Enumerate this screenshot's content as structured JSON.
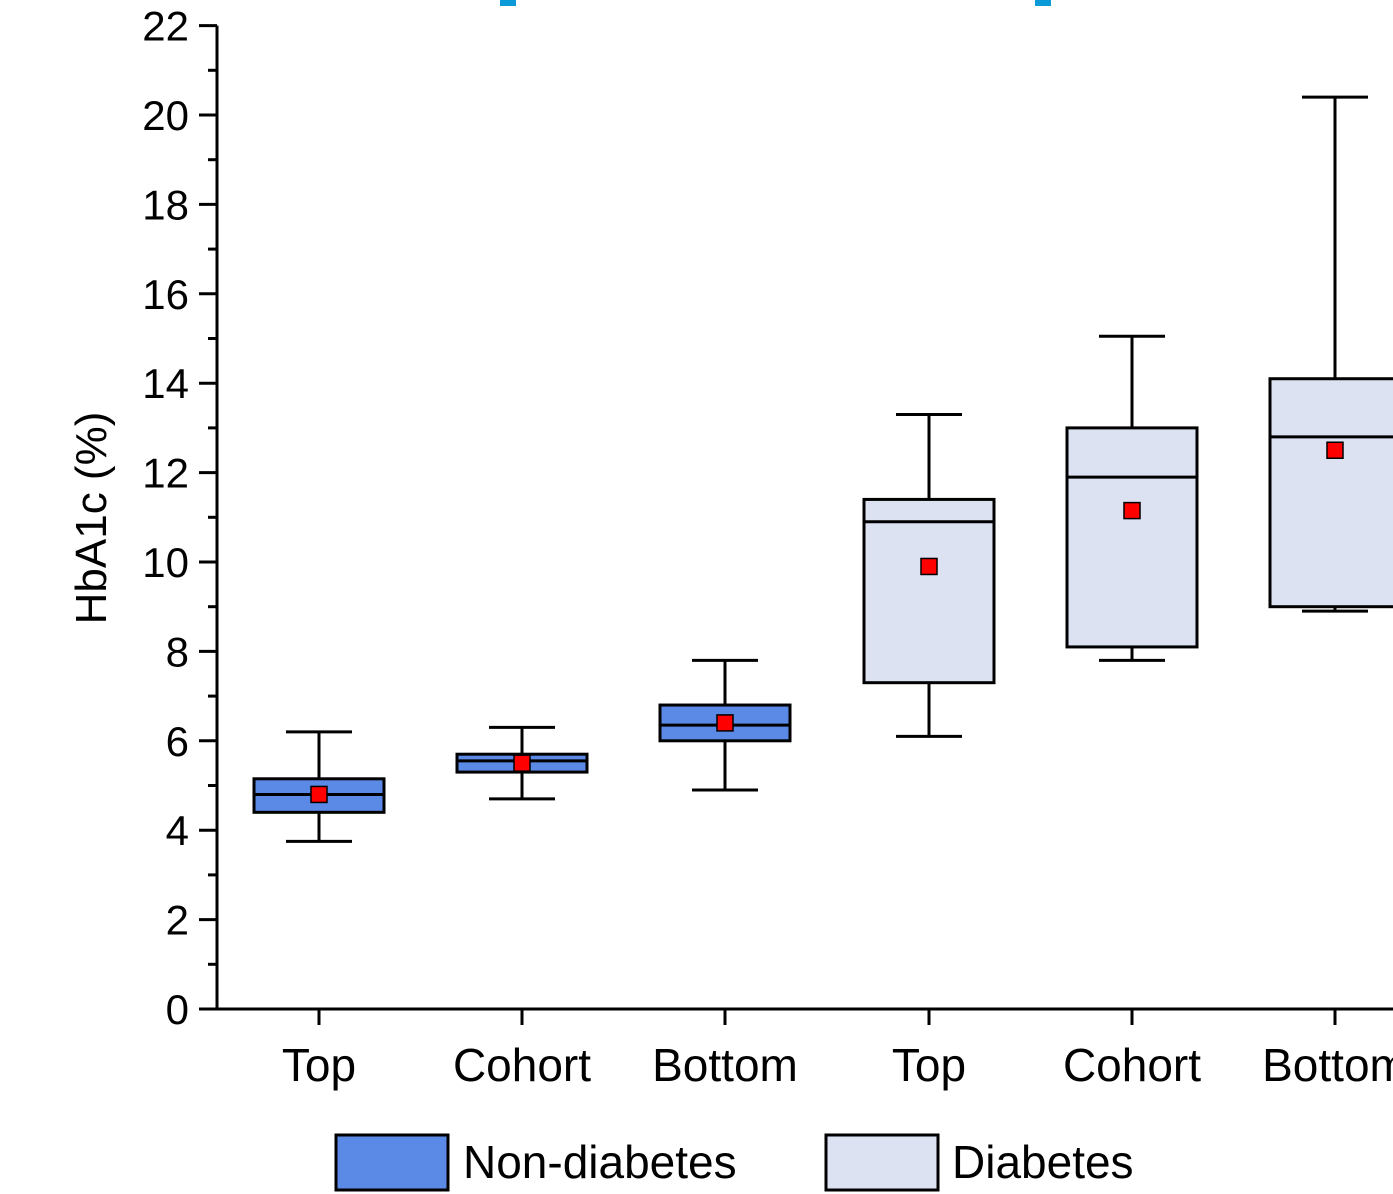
{
  "chart_data": {
    "type": "box",
    "ylabel": "HbA1c (%)",
    "ylim": [
      0,
      22
    ],
    "yticks": [
      "0",
      "2",
      "4",
      "6",
      "8",
      "10",
      "12",
      "14",
      "16",
      "18",
      "20",
      "22"
    ],
    "categories": [
      "Top",
      "Cohort",
      "Bottom",
      "Top",
      "Cohort",
      "Bottom"
    ],
    "series": [
      {
        "name": "Non-diabetes",
        "color": "#5b8ae6",
        "boxes": [
          {
            "category": "Top",
            "min": 3.75,
            "q1": 4.4,
            "median": 4.8,
            "q3": 5.15,
            "max": 6.2,
            "mean": 4.8
          },
          {
            "category": "Cohort",
            "min": 4.7,
            "q1": 5.3,
            "median": 5.55,
            "q3": 5.7,
            "max": 6.3,
            "mean": 5.5
          },
          {
            "category": "Bottom",
            "min": 4.9,
            "q1": 6.0,
            "median": 6.35,
            "q3": 6.8,
            "max": 7.8,
            "mean": 6.4
          }
        ]
      },
      {
        "name": "Diabetes",
        "color": "#dce2f2",
        "boxes": [
          {
            "category": "Top",
            "min": 6.1,
            "q1": 7.3,
            "median": 10.9,
            "q3": 11.4,
            "max": 13.3,
            "mean": 9.9
          },
          {
            "category": "Cohort",
            "min": 7.8,
            "q1": 8.1,
            "median": 11.9,
            "q3": 13.0,
            "max": 15.05,
            "mean": 11.15
          },
          {
            "category": "Bottom",
            "min": 8.9,
            "q1": 9.0,
            "median": 12.8,
            "q3": 14.1,
            "max": 20.4,
            "mean": 12.5
          }
        ]
      }
    ],
    "mean_marker_color": "#ff0000",
    "legend": {
      "placement": "bottom-center",
      "entries": [
        {
          "label": "Non-diabetes",
          "color": "#5b8ae6"
        },
        {
          "label": "Diabetes",
          "color": "#dce2f2"
        }
      ]
    }
  }
}
